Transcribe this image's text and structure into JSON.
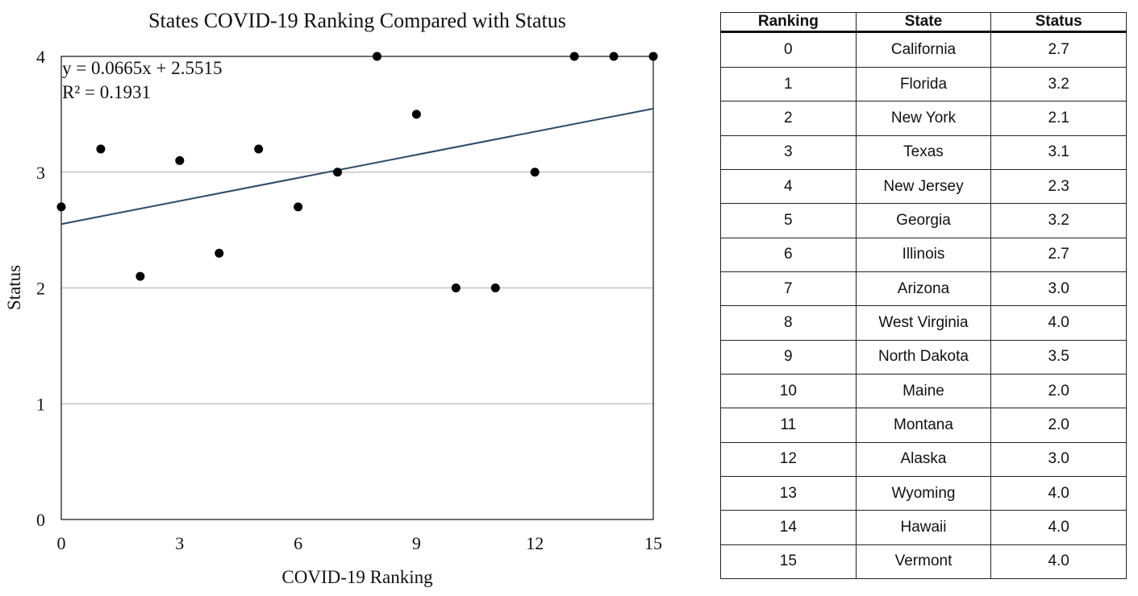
{
  "chart_data": [
    {
      "type": "scatter",
      "title": "States COVID-19 Ranking Compared with Status",
      "xlabel": "COVID-19 Ranking",
      "ylabel": "Status",
      "xlim": [
        0,
        15
      ],
      "ylim": [
        0,
        4
      ],
      "xticks": [
        0,
        3,
        6,
        9,
        12,
        15
      ],
      "yticks": [
        0,
        1,
        2,
        3,
        4
      ],
      "grid": "horizontal",
      "series": [
        {
          "x": [
            0,
            1,
            2,
            3,
            4,
            5,
            6,
            7,
            8,
            9,
            10,
            11,
            12,
            13,
            14,
            15
          ],
          "y": [
            2.7,
            3.2,
            2.1,
            3.1,
            2.3,
            3.2,
            2.7,
            3.0,
            4.0,
            3.5,
            2.0,
            2.0,
            3.0,
            4.0,
            4.0,
            4.0
          ]
        }
      ],
      "trendline": {
        "slope": 0.0665,
        "intercept": 2.5515,
        "equation": "y = 0.0665x + 2.5515",
        "r_squared": "R² = 0.1931"
      }
    },
    {
      "type": "table",
      "columns": [
        "Ranking",
        "State",
        "Status"
      ],
      "rows": [
        [
          "0",
          "California",
          "2.7"
        ],
        [
          "1",
          "Florida",
          "3.2"
        ],
        [
          "2",
          "New York",
          "2.1"
        ],
        [
          "3",
          "Texas",
          "3.1"
        ],
        [
          "4",
          "New Jersey",
          "2.3"
        ],
        [
          "5",
          "Georgia",
          "3.2"
        ],
        [
          "6",
          "Illinois",
          "2.7"
        ],
        [
          "7",
          "Arizona",
          "3.0"
        ],
        [
          "8",
          "West Virginia",
          "4.0"
        ],
        [
          "9",
          "North Dakota",
          "3.5"
        ],
        [
          "10",
          "Maine",
          "2.0"
        ],
        [
          "11",
          "Montana",
          "2.0"
        ],
        [
          "12",
          "Alaska",
          "3.0"
        ],
        [
          "13",
          "Wyoming",
          "4.0"
        ],
        [
          "14",
          "Hawaii",
          "4.0"
        ],
        [
          "15",
          "Vermont",
          "4.0"
        ]
      ]
    }
  ]
}
